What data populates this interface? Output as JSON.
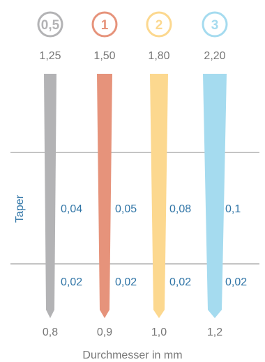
{
  "instruments": [
    {
      "size": "0,5",
      "top_value": "1,25",
      "bottom_value": "0,8",
      "taper_upper": "0,04",
      "taper_lower": "0,02",
      "color": "#b3b3b5"
    },
    {
      "size": "1",
      "top_value": "1,50",
      "bottom_value": "0,9",
      "taper_upper": "0,05",
      "taper_lower": "0,02",
      "color": "#e6937b"
    },
    {
      "size": "2",
      "top_value": "1,80",
      "bottom_value": "1,0",
      "taper_upper": "0,08",
      "taper_lower": "0,02",
      "color": "#fcd88f"
    },
    {
      "size": "3",
      "top_value": "2,20",
      "bottom_value": "1,2",
      "taper_upper": "0,1",
      "taper_lower": "0,02",
      "color": "#a5dbef"
    }
  ],
  "axis_label": "Taper",
  "caption": "Durchmesser in mm",
  "colors": {
    "line": "#888888",
    "label_blue": "#2f74a6",
    "text_gray": "#777777"
  }
}
